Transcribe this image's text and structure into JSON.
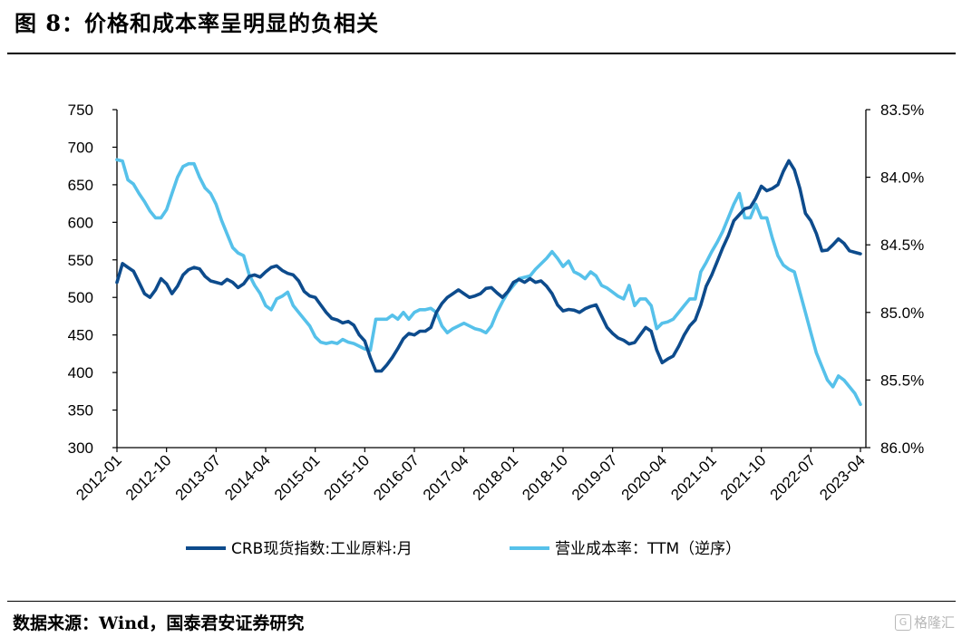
{
  "header": {
    "title": "图 8：价格和成本率呈明显的负相关"
  },
  "footer": {
    "source": "数据来源：Wind，国泰君安证券研究",
    "watermark": "格隆汇"
  },
  "chart_data": {
    "type": "line",
    "x": [
      "2012-01",
      "2012-10",
      "2013-07",
      "2014-04",
      "2015-01",
      "2015-10",
      "2016-07",
      "2017-04",
      "2018-01",
      "2018-10",
      "2019-07",
      "2020-04",
      "2021-01",
      "2021-10",
      "2022-07",
      "2023-04"
    ],
    "xlim": [
      "2012-01",
      "2023-04"
    ],
    "y_left_ticks": [
      "750",
      "700",
      "650",
      "600",
      "550",
      "500",
      "450",
      "400",
      "350",
      "300"
    ],
    "y_right_ticks": [
      "83.5%",
      "84.0%",
      "84.5%",
      "85.0%",
      "85.5%",
      "86.0%"
    ],
    "ylim_left": [
      300,
      750
    ],
    "ylim_right": [
      83.5,
      86.0
    ],
    "right_axis_inverted": true,
    "grid": false,
    "legend_position": "bottom",
    "series": [
      {
        "name": "CRB现货指数:工业原料:月",
        "axis": "left",
        "color": "#0d4b8c",
        "points": [
          [
            "2012-01",
            520
          ],
          [
            "2012-02",
            545
          ],
          [
            "2012-03",
            540
          ],
          [
            "2012-04",
            535
          ],
          [
            "2012-05",
            520
          ],
          [
            "2012-06",
            505
          ],
          [
            "2012-07",
            500
          ],
          [
            "2012-08",
            510
          ],
          [
            "2012-09",
            525
          ],
          [
            "2012-10",
            518
          ],
          [
            "2012-11",
            505
          ],
          [
            "2012-12",
            515
          ],
          [
            "2013-01",
            530
          ],
          [
            "2013-02",
            537
          ],
          [
            "2013-03",
            540
          ],
          [
            "2013-04",
            538
          ],
          [
            "2013-05",
            528
          ],
          [
            "2013-06",
            522
          ],
          [
            "2013-07",
            520
          ],
          [
            "2013-08",
            518
          ],
          [
            "2013-09",
            524
          ],
          [
            "2013-10",
            520
          ],
          [
            "2013-11",
            513
          ],
          [
            "2013-12",
            518
          ],
          [
            "2014-01",
            528
          ],
          [
            "2014-02",
            530
          ],
          [
            "2014-03",
            527
          ],
          [
            "2014-04",
            534
          ],
          [
            "2014-05",
            540
          ],
          [
            "2014-06",
            542
          ],
          [
            "2014-07",
            536
          ],
          [
            "2014-08",
            532
          ],
          [
            "2014-09",
            530
          ],
          [
            "2014-10",
            522
          ],
          [
            "2014-11",
            508
          ],
          [
            "2014-12",
            502
          ],
          [
            "2015-01",
            500
          ],
          [
            "2015-02",
            490
          ],
          [
            "2015-03",
            480
          ],
          [
            "2015-04",
            472
          ],
          [
            "2015-05",
            470
          ],
          [
            "2015-06",
            466
          ],
          [
            "2015-07",
            468
          ],
          [
            "2015-08",
            463
          ],
          [
            "2015-09",
            450
          ],
          [
            "2015-10",
            442
          ],
          [
            "2015-11",
            420
          ],
          [
            "2015-12",
            402
          ],
          [
            "2016-01",
            402
          ],
          [
            "2016-02",
            410
          ],
          [
            "2016-03",
            420
          ],
          [
            "2016-04",
            432
          ],
          [
            "2016-05",
            445
          ],
          [
            "2016-06",
            452
          ],
          [
            "2016-07",
            450
          ],
          [
            "2016-08",
            455
          ],
          [
            "2016-09",
            455
          ],
          [
            "2016-10",
            460
          ],
          [
            "2016-11",
            480
          ],
          [
            "2016-12",
            492
          ],
          [
            "2017-01",
            500
          ],
          [
            "2017-02",
            505
          ],
          [
            "2017-03",
            510
          ],
          [
            "2017-04",
            505
          ],
          [
            "2017-05",
            500
          ],
          [
            "2017-06",
            502
          ],
          [
            "2017-07",
            505
          ],
          [
            "2017-08",
            512
          ],
          [
            "2017-09",
            513
          ],
          [
            "2017-10",
            506
          ],
          [
            "2017-11",
            500
          ],
          [
            "2017-12",
            508
          ],
          [
            "2018-01",
            520
          ],
          [
            "2018-02",
            524
          ],
          [
            "2018-03",
            520
          ],
          [
            "2018-04",
            525
          ],
          [
            "2018-05",
            520
          ],
          [
            "2018-06",
            522
          ],
          [
            "2018-07",
            515
          ],
          [
            "2018-08",
            505
          ],
          [
            "2018-09",
            490
          ],
          [
            "2018-10",
            482
          ],
          [
            "2018-11",
            484
          ],
          [
            "2018-12",
            483
          ],
          [
            "2019-01",
            480
          ],
          [
            "2019-02",
            485
          ],
          [
            "2019-03",
            488
          ],
          [
            "2019-04",
            490
          ],
          [
            "2019-05",
            475
          ],
          [
            "2019-06",
            460
          ],
          [
            "2019-07",
            452
          ],
          [
            "2019-08",
            446
          ],
          [
            "2019-09",
            443
          ],
          [
            "2019-10",
            438
          ],
          [
            "2019-11",
            440
          ],
          [
            "2019-12",
            450
          ],
          [
            "2020-01",
            460
          ],
          [
            "2020-02",
            455
          ],
          [
            "2020-03",
            430
          ],
          [
            "2020-04",
            413
          ],
          [
            "2020-05",
            418
          ],
          [
            "2020-06",
            422
          ],
          [
            "2020-07",
            435
          ],
          [
            "2020-08",
            450
          ],
          [
            "2020-09",
            462
          ],
          [
            "2020-10",
            470
          ],
          [
            "2020-11",
            490
          ],
          [
            "2020-12",
            515
          ],
          [
            "2021-01",
            530
          ],
          [
            "2021-02",
            548
          ],
          [
            "2021-03",
            566
          ],
          [
            "2021-04",
            582
          ],
          [
            "2021-05",
            602
          ],
          [
            "2021-06",
            610
          ],
          [
            "2021-07",
            618
          ],
          [
            "2021-08",
            620
          ],
          [
            "2021-09",
            632
          ],
          [
            "2021-10",
            648
          ],
          [
            "2021-11",
            642
          ],
          [
            "2021-12",
            645
          ],
          [
            "2022-01",
            650
          ],
          [
            "2022-02",
            668
          ],
          [
            "2022-03",
            682
          ],
          [
            "2022-04",
            670
          ],
          [
            "2022-05",
            645
          ],
          [
            "2022-06",
            612
          ],
          [
            "2022-07",
            602
          ],
          [
            "2022-08",
            585
          ],
          [
            "2022-09",
            562
          ],
          [
            "2022-10",
            563
          ],
          [
            "2022-11",
            570
          ],
          [
            "2022-12",
            578
          ],
          [
            "2023-01",
            572
          ],
          [
            "2023-02",
            562
          ],
          [
            "2023-03",
            560
          ],
          [
            "2023-04",
            558
          ]
        ]
      },
      {
        "name": "营业成本率：TTM（逆序）",
        "axis": "right",
        "color": "#56c1ea",
        "points": [
          [
            "2012-01",
            83.87
          ],
          [
            "2012-02",
            83.88
          ],
          [
            "2012-03",
            84.02
          ],
          [
            "2012-04",
            84.05
          ],
          [
            "2012-05",
            84.12
          ],
          [
            "2012-06",
            84.18
          ],
          [
            "2012-07",
            84.25
          ],
          [
            "2012-08",
            84.3
          ],
          [
            "2012-09",
            84.3
          ],
          [
            "2012-10",
            84.24
          ],
          [
            "2012-11",
            84.12
          ],
          [
            "2012-12",
            84.0
          ],
          [
            "2013-01",
            83.92
          ],
          [
            "2013-02",
            83.9
          ],
          [
            "2013-03",
            83.9
          ],
          [
            "2013-04",
            84.0
          ],
          [
            "2013-05",
            84.08
          ],
          [
            "2013-06",
            84.12
          ],
          [
            "2013-07",
            84.2
          ],
          [
            "2013-08",
            84.32
          ],
          [
            "2013-09",
            84.42
          ],
          [
            "2013-10",
            84.52
          ],
          [
            "2013-11",
            84.56
          ],
          [
            "2013-12",
            84.58
          ],
          [
            "2014-01",
            84.72
          ],
          [
            "2014-02",
            84.8
          ],
          [
            "2014-03",
            84.86
          ],
          [
            "2014-04",
            84.95
          ],
          [
            "2014-05",
            84.98
          ],
          [
            "2014-06",
            84.9
          ],
          [
            "2014-07",
            84.88
          ],
          [
            "2014-08",
            84.85
          ],
          [
            "2014-09",
            84.95
          ],
          [
            "2014-10",
            85.0
          ],
          [
            "2014-11",
            85.05
          ],
          [
            "2014-12",
            85.1
          ],
          [
            "2015-01",
            85.18
          ],
          [
            "2015-02",
            85.22
          ],
          [
            "2015-03",
            85.23
          ],
          [
            "2015-04",
            85.22
          ],
          [
            "2015-05",
            85.23
          ],
          [
            "2015-06",
            85.2
          ],
          [
            "2015-07",
            85.22
          ],
          [
            "2015-08",
            85.23
          ],
          [
            "2015-09",
            85.25
          ],
          [
            "2015-10",
            85.27
          ],
          [
            "2015-11",
            85.28
          ],
          [
            "2015-12",
            85.05
          ],
          [
            "2016-01",
            85.05
          ],
          [
            "2016-02",
            85.05
          ],
          [
            "2016-03",
            85.02
          ],
          [
            "2016-04",
            85.05
          ],
          [
            "2016-05",
            85.0
          ],
          [
            "2016-06",
            85.05
          ],
          [
            "2016-07",
            85.0
          ],
          [
            "2016-08",
            84.98
          ],
          [
            "2016-09",
            84.98
          ],
          [
            "2016-10",
            84.97
          ],
          [
            "2016-11",
            85.0
          ],
          [
            "2016-12",
            85.1
          ],
          [
            "2017-01",
            85.15
          ],
          [
            "2017-02",
            85.12
          ],
          [
            "2017-03",
            85.1
          ],
          [
            "2017-04",
            85.08
          ],
          [
            "2017-05",
            85.1
          ],
          [
            "2017-06",
            85.12
          ],
          [
            "2017-07",
            85.13
          ],
          [
            "2017-08",
            85.15
          ],
          [
            "2017-09",
            85.1
          ],
          [
            "2017-10",
            85.0
          ],
          [
            "2017-11",
            84.92
          ],
          [
            "2017-12",
            84.85
          ],
          [
            "2018-01",
            84.8
          ],
          [
            "2018-02",
            84.75
          ],
          [
            "2018-03",
            84.74
          ],
          [
            "2018-04",
            84.73
          ],
          [
            "2018-05",
            84.68
          ],
          [
            "2018-06",
            84.64
          ],
          [
            "2018-07",
            84.6
          ],
          [
            "2018-08",
            84.55
          ],
          [
            "2018-09",
            84.6
          ],
          [
            "2018-10",
            84.66
          ],
          [
            "2018-11",
            84.62
          ],
          [
            "2018-12",
            84.7
          ],
          [
            "2019-01",
            84.72
          ],
          [
            "2019-02",
            84.75
          ],
          [
            "2019-03",
            84.7
          ],
          [
            "2019-04",
            84.73
          ],
          [
            "2019-05",
            84.8
          ],
          [
            "2019-06",
            84.82
          ],
          [
            "2019-07",
            84.85
          ],
          [
            "2019-08",
            84.88
          ],
          [
            "2019-09",
            84.9
          ],
          [
            "2019-10",
            84.8
          ],
          [
            "2019-11",
            84.95
          ],
          [
            "2019-12",
            84.9
          ],
          [
            "2020-01",
            84.9
          ],
          [
            "2020-02",
            84.95
          ],
          [
            "2020-03",
            85.12
          ],
          [
            "2020-04",
            85.08
          ],
          [
            "2020-05",
            85.07
          ],
          [
            "2020-06",
            85.05
          ],
          [
            "2020-07",
            85.0
          ],
          [
            "2020-08",
            84.95
          ],
          [
            "2020-09",
            84.9
          ],
          [
            "2020-10",
            84.9
          ],
          [
            "2020-11",
            84.7
          ],
          [
            "2020-12",
            84.63
          ],
          [
            "2021-01",
            84.55
          ],
          [
            "2021-02",
            84.48
          ],
          [
            "2021-03",
            84.4
          ],
          [
            "2021-04",
            84.3
          ],
          [
            "2021-05",
            84.2
          ],
          [
            "2021-06",
            84.12
          ],
          [
            "2021-07",
            84.3
          ],
          [
            "2021-08",
            84.3
          ],
          [
            "2021-09",
            84.2
          ],
          [
            "2021-10",
            84.3
          ],
          [
            "2021-11",
            84.3
          ],
          [
            "2021-12",
            84.45
          ],
          [
            "2022-01",
            84.58
          ],
          [
            "2022-02",
            84.65
          ],
          [
            "2022-03",
            84.68
          ],
          [
            "2022-04",
            84.7
          ],
          [
            "2022-05",
            84.85
          ],
          [
            "2022-06",
            85.0
          ],
          [
            "2022-07",
            85.15
          ],
          [
            "2022-08",
            85.3
          ],
          [
            "2022-09",
            85.4
          ],
          [
            "2022-10",
            85.5
          ],
          [
            "2022-11",
            85.55
          ],
          [
            "2022-12",
            85.47
          ],
          [
            "2023-01",
            85.5
          ],
          [
            "2023-02",
            85.55
          ],
          [
            "2023-03",
            85.6
          ],
          [
            "2023-04",
            85.68
          ]
        ]
      }
    ]
  }
}
